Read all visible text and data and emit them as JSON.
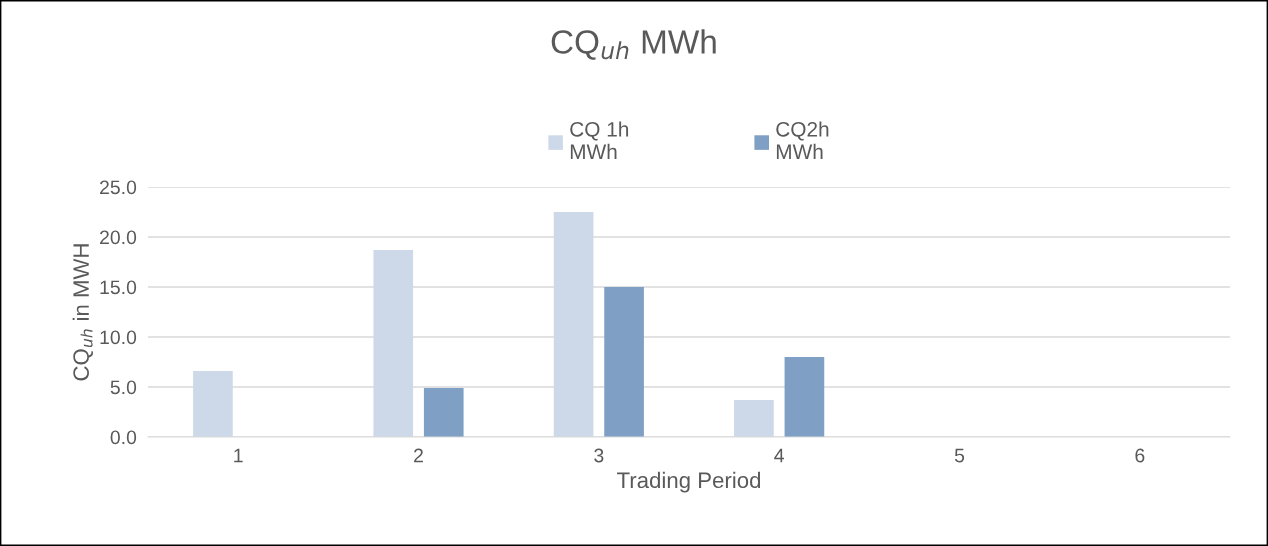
{
  "chart_data": {
    "type": "bar",
    "title": "CQ$_{uh}$ MWh",
    "xlabel": "Trading Period",
    "ylabel": "CQ$_{uh}$ in MWH",
    "categories": [
      "1",
      "2",
      "3",
      "4",
      "5",
      "6"
    ],
    "series": [
      {
        "name": "CQ 1h\nMWh",
        "color": "#cdd9e9",
        "values": [
          6.6,
          18.7,
          22.5,
          3.7,
          null,
          null
        ]
      },
      {
        "name": "CQ2h\nMWh",
        "color": "#7f9fc5",
        "values": [
          null,
          4.9,
          15.0,
          8.0,
          null,
          null
        ]
      }
    ],
    "ylim": [
      0,
      25
    ],
    "yticks": [
      {
        "value": 0,
        "label": "0.0"
      },
      {
        "value": 5,
        "label": "5.0"
      },
      {
        "value": 10,
        "label": "10.0"
      },
      {
        "value": 15,
        "label": "15.0"
      },
      {
        "value": 20,
        "label": "20.0"
      },
      {
        "value": 25,
        "label": "25.0"
      }
    ],
    "grid": "y",
    "legend": "top"
  }
}
